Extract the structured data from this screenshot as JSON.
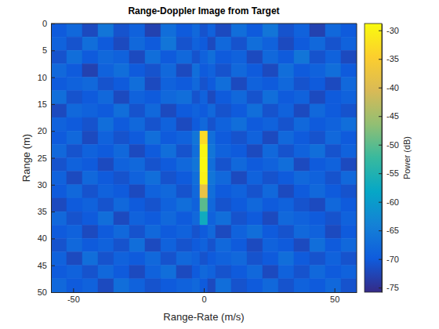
{
  "chart_data": {
    "type": "heatmap",
    "title": "Range-Doppler Image from Target",
    "x_label": "Range-Rate (m/s)",
    "y_label": "Range (m)",
    "xlim": [
      -58.5,
      58.5
    ],
    "ylim": [
      0,
      50
    ],
    "xticks": [
      -50,
      0,
      50
    ],
    "yticks": [
      0,
      5,
      10,
      15,
      20,
      25,
      30,
      35,
      40,
      45,
      50
    ],
    "grid": false,
    "x_edges": [
      -58.5,
      -52.5,
      -46.5,
      -40.5,
      -34.5,
      -28.5,
      -22.5,
      -16.5,
      -10.5,
      -4.5,
      -1.5,
      1.5,
      4.5,
      10.5,
      16.5,
      22.5,
      28.5,
      34.5,
      40.5,
      46.5,
      52.5,
      58.5
    ],
    "y_edges": [
      0,
      2.5,
      5,
      7.5,
      10,
      12.5,
      15,
      17.5,
      20,
      22.5,
      25,
      27.5,
      30,
      32.5,
      35,
      37.5,
      40,
      42.5,
      45,
      47.5,
      50
    ],
    "cells": [
      [
        -70,
        -68,
        -72,
        -66,
        -71,
        -69,
        -73,
        -67,
        -70,
        -68,
        -71,
        -69,
        -72,
        -67,
        -70,
        -66,
        -71,
        -69,
        -73,
        -68,
        -70
      ],
      [
        -69,
        -71,
        -67,
        -70,
        -72,
        -68,
        -70,
        -66,
        -71,
        -69,
        -70,
        -72,
        -68,
        -71,
        -67,
        -69,
        -72,
        -70,
        -68,
        -71,
        -69
      ],
      [
        -71,
        -67,
        -70,
        -68,
        -69,
        -72,
        -67,
        -70,
        -68,
        -71,
        -69,
        -67,
        -70,
        -69,
        -72,
        -68,
        -70,
        -66,
        -71,
        -69,
        -72
      ],
      [
        -68,
        -70,
        -73,
        -69,
        -67,
        -70,
        -71,
        -68,
        -72,
        -67,
        -70,
        -69,
        -71,
        -68,
        -70,
        -72,
        -67,
        -70,
        -69,
        -67,
        -70
      ],
      [
        -70,
        -69,
        -68,
        -71,
        -70,
        -67,
        -72,
        -69,
        -70,
        -68,
        -71,
        -70,
        -67,
        -72,
        -69,
        -70,
        -68,
        -71,
        -70,
        -72,
        -68
      ],
      [
        -67,
        -71,
        -70,
        -68,
        -72,
        -69,
        -70,
        -68,
        -67,
        -71,
        -69,
        -72,
        -70,
        -68,
        -71,
        -67,
        -70,
        -69,
        -72,
        -70,
        -69
      ],
      [
        -72,
        -68,
        -69,
        -70,
        -67,
        -71,
        -68,
        -72,
        -70,
        -69,
        -70,
        -68,
        -71,
        -70,
        -67,
        -71,
        -69,
        -72,
        -68,
        -70,
        -71
      ],
      [
        -69,
        -70,
        -71,
        -67,
        -70,
        -68,
        -71,
        -69,
        -72,
        -70,
        -68,
        -71,
        -69,
        -67,
        -70,
        -69,
        -71,
        -68,
        -70,
        -69,
        -67
      ],
      [
        -70,
        -68,
        -72,
        -69,
        -71,
        -70,
        -67,
        -70,
        -69,
        -66,
        -33,
        -67,
        -70,
        -71,
        -69,
        -72,
        -68,
        -70,
        -71,
        -68,
        -70
      ],
      [
        -68,
        -71,
        -69,
        -70,
        -68,
        -72,
        -70,
        -67,
        -71,
        -67,
        -29.5,
        -66,
        -69,
        -70,
        -72,
        -68,
        -71,
        -69,
        -67,
        -71,
        -69
      ],
      [
        -71,
        -69,
        -70,
        -72,
        -69,
        -68,
        -71,
        -70,
        -68,
        -66,
        -29,
        -67,
        -71,
        -68,
        -70,
        -69,
        -67,
        -72,
        -70,
        -69,
        -72
      ],
      [
        -69,
        -72,
        -68,
        -70,
        -71,
        -69,
        -67,
        -71,
        -70,
        -67,
        -30,
        -66,
        -68,
        -72,
        -69,
        -71,
        -70,
        -68,
        -69,
        -71,
        -68
      ],
      [
        -70,
        -68,
        -71,
        -69,
        -70,
        -72,
        -69,
        -68,
        -71,
        -68,
        -38,
        -67,
        -70,
        -69,
        -71,
        -68,
        -72,
        -70,
        -68,
        -70,
        -71
      ],
      [
        -72,
        -70,
        -69,
        -71,
        -68,
        -70,
        -71,
        -69,
        -67,
        -69,
        -50,
        -68,
        -71,
        -70,
        -68,
        -70,
        -69,
        -71,
        -72,
        -68,
        -70
      ],
      [
        -68,
        -71,
        -70,
        -67,
        -72,
        -69,
        -70,
        -68,
        -70,
        -68,
        -57,
        -69,
        -67,
        -71,
        -70,
        -72,
        -68,
        -69,
        -70,
        -71,
        -69
      ],
      [
        -70,
        -69,
        -72,
        -70,
        -68,
        -71,
        -68,
        -70,
        -69,
        -71,
        -70,
        -68,
        -72,
        -69,
        -67,
        -70,
        -71,
        -68,
        -69,
        -72,
        -70
      ],
      [
        -71,
        -68,
        -70,
        -69,
        -71,
        -67,
        -72,
        -69,
        -71,
        -70,
        -69,
        -71,
        -68,
        -70,
        -72,
        -69,
        -70,
        -72,
        -67,
        -70,
        -68
      ],
      [
        -69,
        -72,
        -67,
        -71,
        -69,
        -70,
        -68,
        -71,
        -68,
        -69,
        -71,
        -70,
        -69,
        -68,
        -71,
        -70,
        -67,
        -70,
        -71,
        -69,
        -71
      ],
      [
        -70,
        -69,
        -71,
        -68,
        -70,
        -72,
        -69,
        -67,
        -72,
        -70,
        -68,
        -69,
        -71,
        -70,
        -68,
        -72,
        -69,
        -71,
        -68,
        -70,
        -69
      ],
      [
        -68,
        -70,
        -69,
        -72,
        -67,
        -69,
        -71,
        -70,
        -69,
        -68,
        -70,
        -72,
        -67,
        -71,
        -70,
        -68,
        -71,
        -69,
        -70,
        -68,
        -71
      ]
    ],
    "colorbar": {
      "label": "Power (dB)",
      "lim": [
        -75.8,
        -28.8
      ],
      "ticks": [
        -30,
        -35,
        -40,
        -45,
        -50,
        -55,
        -60,
        -65,
        -70,
        -75
      ]
    }
  }
}
